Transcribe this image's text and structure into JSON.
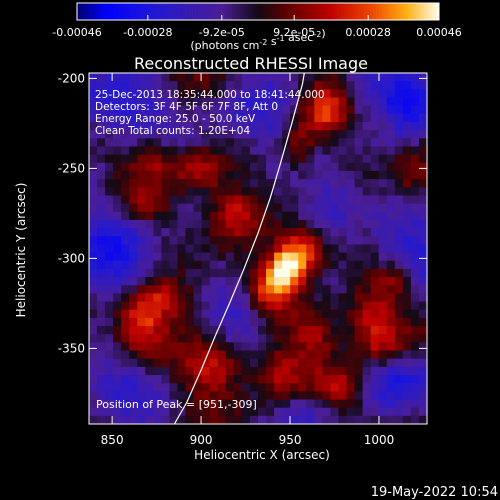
{
  "chart_data": {
    "type": "heatmap",
    "title": "Reconstructed RHESSI Image",
    "xlabel": "Heliocentric X (arcsec)",
    "ylabel": "Heliocentric Y (arcsec)",
    "xlim": [
      837,
      1027
    ],
    "ylim": [
      -392,
      -197
    ],
    "x_ticks": [
      850,
      900,
      950,
      1000
    ],
    "y_ticks": [
      -350,
      -300,
      -250,
      -200
    ],
    "colorbar": {
      "min": -0.00046,
      "max": 0.00046,
      "tick_values": [
        -0.00046,
        -0.00028,
        -9.2e-05,
        9.2e-05,
        0.00028,
        0.00046
      ],
      "tick_labels": [
        "-0.00046",
        "-0.00028",
        "-9.2e-05",
        "9.2e-05",
        "0.00028",
        "0.00046"
      ],
      "units_label": "(photons cm-2 s-1 asec-2)"
    },
    "info_lines": [
      "25-Dec-2013 18:35:44.000 to 18:41:44.000",
      "Detectors: 3F 4F 5F 6F 7F 8F, Att 0",
      "Energy Range: 25.0 - 50.0 keV",
      "Clean    Total counts: 1.20E+04"
    ],
    "peak_label": "Position of Peak = [951,-309]",
    "peak_position": [
      951,
      -309
    ],
    "limb_points": [
      [
        885,
        -392
      ],
      [
        892,
        -380
      ],
      [
        900,
        -362
      ],
      [
        908,
        -343
      ],
      [
        916,
        -325
      ],
      [
        924,
        -306
      ],
      [
        932,
        -286
      ],
      [
        939,
        -266
      ],
      [
        945,
        -246
      ],
      [
        951,
        -225
      ],
      [
        957,
        -203
      ],
      [
        958,
        -197
      ]
    ],
    "image_blobs": [
      {
        "x": 948,
        "y": -306,
        "amp": 0.00046,
        "sx": 7,
        "sy": 8
      },
      {
        "x": 958,
        "y": -296,
        "amp": 0.00034,
        "sx": 9,
        "sy": 9
      },
      {
        "x": 937,
        "y": -318,
        "amp": 0.00028,
        "sx": 8,
        "sy": 10
      },
      {
        "x": 865,
        "y": -336,
        "amp": 0.00032,
        "sx": 10,
        "sy": 12
      },
      {
        "x": 880,
        "y": -322,
        "amp": 0.00022,
        "sx": 11,
        "sy": 8
      },
      {
        "x": 995,
        "y": -332,
        "amp": 0.00027,
        "sx": 11,
        "sy": 11
      },
      {
        "x": 1010,
        "y": -312,
        "amp": 0.00019,
        "sx": 8,
        "sy": 7
      },
      {
        "x": 970,
        "y": -218,
        "amp": 0.00025,
        "sx": 8,
        "sy": 10
      },
      {
        "x": 955,
        "y": -236,
        "amp": 0.00018,
        "sx": 6,
        "sy": 10
      },
      {
        "x": 918,
        "y": -275,
        "amp": 0.00024,
        "sx": 9,
        "sy": 10
      },
      {
        "x": 898,
        "y": -252,
        "amp": 0.00022,
        "sx": 10,
        "sy": 9
      },
      {
        "x": 874,
        "y": -244,
        "amp": 0.00016,
        "sx": 9,
        "sy": 10
      },
      {
        "x": 870,
        "y": -270,
        "amp": 0.00014,
        "sx": 8,
        "sy": 7
      },
      {
        "x": 909,
        "y": -360,
        "amp": 0.00024,
        "sx": 12,
        "sy": 10
      },
      {
        "x": 943,
        "y": -366,
        "amp": 0.00019,
        "sx": 10,
        "sy": 12
      },
      {
        "x": 980,
        "y": -372,
        "amp": 0.00021,
        "sx": 10,
        "sy": 8
      },
      {
        "x": 1018,
        "y": -254,
        "amp": 0.00014,
        "sx": 8,
        "sy": 15
      },
      {
        "x": 1000,
        "y": -225,
        "amp": 0.0001,
        "sx": 7,
        "sy": 8
      },
      {
        "x": 1001,
        "y": -350,
        "amp": 0.00016,
        "sx": 9,
        "sy": 8
      },
      {
        "x": 965,
        "y": -340,
        "amp": 0.00017,
        "sx": 9,
        "sy": 10
      },
      {
        "x": 1015,
        "y": -300,
        "amp": -0.0002,
        "sx": 16,
        "sy": 17
      },
      {
        "x": 1015,
        "y": -210,
        "amp": -0.00028,
        "sx": 18,
        "sy": 18
      },
      {
        "x": 850,
        "y": -215,
        "amp": -0.00024,
        "sx": 18,
        "sy": 14
      },
      {
        "x": 850,
        "y": -300,
        "amp": -0.00022,
        "sx": 18,
        "sy": 20
      },
      {
        "x": 850,
        "y": -372,
        "amp": -0.00017,
        "sx": 16,
        "sy": 12
      },
      {
        "x": 925,
        "y": -225,
        "amp": -0.00018,
        "sx": 16,
        "sy": 13
      },
      {
        "x": 925,
        "y": -330,
        "amp": -0.00017,
        "sx": 12,
        "sy": 11
      },
      {
        "x": 975,
        "y": -270,
        "amp": -0.00018,
        "sx": 12,
        "sy": 12
      },
      {
        "x": 1015,
        "y": -370,
        "amp": -0.00021,
        "sx": 16,
        "sy": 12
      },
      {
        "x": 960,
        "y": -385,
        "amp": -0.00013,
        "sx": 12,
        "sy": 8
      }
    ]
  },
  "footer": {
    "timestamp": "19-May-2022 10:54"
  }
}
